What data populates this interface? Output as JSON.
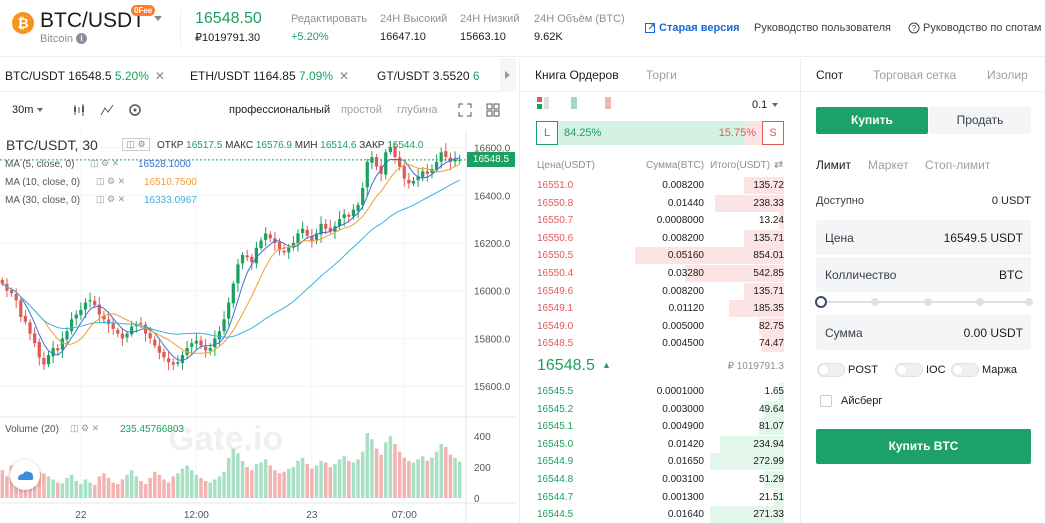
{
  "header": {
    "coin_symbol": "₿",
    "pair": "BTC/USDT",
    "badge": "0Fee",
    "coin_name": "Bitcoin",
    "last_price": "16548.50",
    "last_price_rub": "₽1019791.30",
    "stats": [
      {
        "label": "Редактировать",
        "value": "+5.20%"
      },
      {
        "label": "24Н Высокий",
        "value": "16647.10"
      },
      {
        "label": "24Н Низкий",
        "value": "15663.10"
      },
      {
        "label": "24Н Объём (BTC)",
        "value": "9.62K"
      }
    ],
    "links": [
      "Старая версия",
      "Руководство пользователя",
      "Руководство по спотам"
    ],
    "colors": {
      "up": "#1aa160",
      "down": "#e15957",
      "accent": "#1da16a"
    }
  },
  "pair_tabs": [
    {
      "pair": "BTC/USDT",
      "price": "16548.5",
      "change": "5.20%"
    },
    {
      "pair": "ETH/USDT",
      "price": "1164.85",
      "change": "7.09%"
    },
    {
      "pair": "GT/USDT",
      "price": "3.5520",
      "change": "6"
    }
  ],
  "chart_controls": {
    "interval": "30m",
    "modes": [
      "профессиональный",
      "простой",
      "глубина"
    ]
  },
  "chart_data": {
    "type": "candlestick",
    "title": "BTC/USDT, 30",
    "ohlc_legend": {
      "open_label": "ОТКР",
      "open": "16517.5",
      "high_label": "МАКС",
      "high": "16576.9",
      "low_label": "МИН",
      "low": "16514.6",
      "close_label": "ЗАКР",
      "close": "16544.0"
    },
    "ma": [
      {
        "name": "MA (5, close, 0)",
        "value": "16528.1000",
        "color": "#3d6fd1"
      },
      {
        "name": "MA (10, close, 0)",
        "value": "16510.7500",
        "color": "#f0a030"
      },
      {
        "name": "MA (30, close, 0)",
        "value": "16333.0967",
        "color": "#3fb0d8"
      }
    ],
    "y_ticks": [
      "16600.0",
      "16400.0",
      "16200.0",
      "16000.0",
      "15800.0",
      "15600.0"
    ],
    "ylim": [
      15500,
      16640
    ],
    "current_price_label": "16548.5",
    "volume_label": "Volume (20)",
    "volume_value": "235.45766803",
    "volume_ticks": [
      "400",
      "200",
      "0"
    ],
    "x_ticks": [
      "22",
      "12:00",
      "23",
      "07:00"
    ],
    "closes": [
      16030,
      16000,
      15990,
      15960,
      15890,
      15870,
      15820,
      15780,
      15720,
      15690,
      15730,
      15760,
      15750,
      15800,
      15830,
      15880,
      15900,
      15920,
      15950,
      15960,
      15940,
      15900,
      15880,
      15860,
      15840,
      15820,
      15800,
      15820,
      15850,
      15860,
      15860,
      15820,
      15800,
      15770,
      15740,
      15720,
      15700,
      15690,
      15700,
      15730,
      15760,
      15780,
      15790,
      15770,
      15750,
      15760,
      15800,
      15830,
      15880,
      15950,
      16030,
      16110,
      16150,
      16140,
      16120,
      16180,
      16210,
      16240,
      16220,
      16200,
      16170,
      16160,
      16180,
      16200,
      16240,
      16260,
      16230,
      16210,
      16240,
      16280,
      16260,
      16250,
      16270,
      16300,
      16320,
      16310,
      16340,
      16360,
      16430,
      16540,
      16560,
      16520,
      16490,
      16580,
      16600,
      16560,
      16520,
      16470,
      16450,
      16460,
      16480,
      16500,
      16490,
      16510,
      16540,
      16580,
      16560,
      16540,
      16550,
      16548.5
    ],
    "volumes": [
      180,
      140,
      210,
      120,
      90,
      150,
      130,
      110,
      170,
      160,
      140,
      120,
      100,
      95,
      130,
      150,
      110,
      90,
      120,
      100,
      85,
      140,
      160,
      130,
      100,
      90,
      120,
      150,
      180,
      140,
      110,
      90,
      130,
      170,
      150,
      120,
      100,
      140,
      160,
      190,
      210,
      180,
      150,
      130,
      110,
      100,
      120,
      140,
      170,
      260,
      320,
      290,
      240,
      200,
      180,
      220,
      230,
      250,
      210,
      180,
      160,
      170,
      190,
      200,
      240,
      260,
      220,
      190,
      210,
      240,
      230,
      200,
      220,
      250,
      270,
      240,
      230,
      250,
      300,
      420,
      380,
      320,
      280,
      360,
      400,
      350,
      300,
      260,
      240,
      230,
      250,
      270,
      240,
      260,
      300,
      350,
      330,
      280,
      260,
      235
    ]
  },
  "orderbook": {
    "tabs": [
      "Книга Ордеров",
      "Торги"
    ],
    "precision": "0.1",
    "buy_ratio": "84.25%",
    "sell_ratio": "15.75%",
    "buy_tag": "L",
    "sell_tag": "S",
    "headers": [
      "Цена(USDT)",
      "Сумма(BTC)",
      "Итого(USDT)"
    ],
    "asks": [
      {
        "p": "16551.0",
        "a": "0.008200",
        "t": "135.72",
        "d": 0.16
      },
      {
        "p": "16550.8",
        "a": "0.01440",
        "t": "238.33",
        "d": 0.28
      },
      {
        "p": "16550.7",
        "a": "0.0008000",
        "t": "13.24",
        "d": 0.02
      },
      {
        "p": "16550.6",
        "a": "0.008200",
        "t": "135.71",
        "d": 0.16
      },
      {
        "p": "16550.5",
        "a": "0.05160",
        "t": "854.01",
        "d": 0.6
      },
      {
        "p": "16550.4",
        "a": "0.03280",
        "t": "542.85",
        "d": 0.4
      },
      {
        "p": "16549.6",
        "a": "0.008200",
        "t": "135.71",
        "d": 0.16
      },
      {
        "p": "16549.1",
        "a": "0.01120",
        "t": "185.35",
        "d": 0.22
      },
      {
        "p": "16549.0",
        "a": "0.005000",
        "t": "82.75",
        "d": 0.1
      },
      {
        "p": "16548.5",
        "a": "0.004500",
        "t": "74.47",
        "d": 0.09
      }
    ],
    "mid_price": "16548.5",
    "mid_arrow": "▲",
    "mid_rub": "₽ 1019791.3",
    "bids": [
      {
        "p": "16545.5",
        "a": "0.0001000",
        "t": "1.65",
        "d": 0.02
      },
      {
        "p": "16545.2",
        "a": "0.003000",
        "t": "49.64",
        "d": 0.08
      },
      {
        "p": "16545.1",
        "a": "0.004900",
        "t": "81.07",
        "d": 0.1
      },
      {
        "p": "16545.0",
        "a": "0.01420",
        "t": "234.94",
        "d": 0.26
      },
      {
        "p": "16544.9",
        "a": "0.01650",
        "t": "272.99",
        "d": 0.3
      },
      {
        "p": "16544.8",
        "a": "0.003100",
        "t": "51.29",
        "d": 0.08
      },
      {
        "p": "16544.7",
        "a": "0.001300",
        "t": "21.51",
        "d": 0.04
      },
      {
        "p": "16544.5",
        "a": "0.01640",
        "t": "271.33",
        "d": 0.3
      }
    ]
  },
  "trade": {
    "tabs": [
      "Спот",
      "Торговая сетка",
      "Изолир"
    ],
    "buy_label": "Купить",
    "sell_label": "Продать",
    "order_types": [
      "Лимит",
      "Маркет",
      "Стоп-лимит"
    ],
    "available_label": "Доступно",
    "available_value": "0 USDT",
    "price_label": "Цена",
    "price_value": "16549.5 USDT",
    "qty_label": "Колличество",
    "qty_unit": "BTC",
    "sum_label": "Сумма",
    "sum_value": "0.00 USDT",
    "slider_level": 0,
    "toggles": [
      "POST",
      "IOC",
      "Маржа"
    ],
    "iceberg": "Айсберг",
    "submit": "Купить BTC"
  }
}
